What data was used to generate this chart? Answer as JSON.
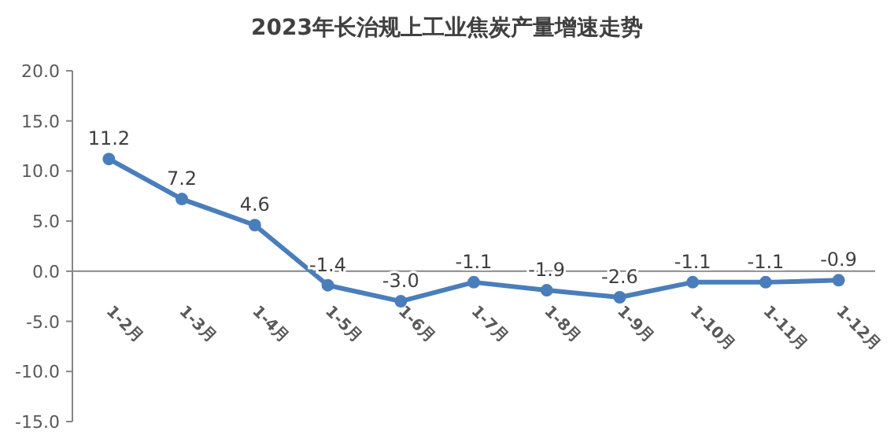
{
  "chart_data": {
    "type": "line",
    "title": "2023年长治规上工业焦炭产量增速走势",
    "categories": [
      "1-2月",
      "1-3月",
      "1-4月",
      "1-5月",
      "1-6月",
      "1-7月",
      "1-8月",
      "1-9月",
      "1-10月",
      "1-11月",
      "1-12月"
    ],
    "series": [
      {
        "color": "#4a7ebb",
        "values": [
          11.2,
          7.2,
          4.6,
          -1.4,
          -3.0,
          -1.1,
          -1.9,
          -2.6,
          -1.1,
          -1.1,
          -0.9
        ],
        "value_labels": [
          "11.2",
          "7.2",
          "4.6",
          "-1.4",
          "-3.0",
          "-1.1",
          "-1.9",
          "-2.6",
          "-1.1",
          "-1.1",
          "-0.9"
        ]
      }
    ],
    "ylim": [
      -15,
      20
    ],
    "yticks": [
      {
        "value": -15,
        "label": "-15.0"
      },
      {
        "value": -10,
        "label": "-10.0"
      },
      {
        "value": -5,
        "label": "-5.0"
      },
      {
        "value": 0,
        "label": "0.0"
      },
      {
        "value": 5,
        "label": "5.0"
      },
      {
        "value": 10,
        "label": "10.0"
      },
      {
        "value": 15,
        "label": "15.0"
      },
      {
        "value": 20,
        "label": "20.0"
      }
    ],
    "marker": "circle",
    "line_style": "solid",
    "grid": false
  }
}
